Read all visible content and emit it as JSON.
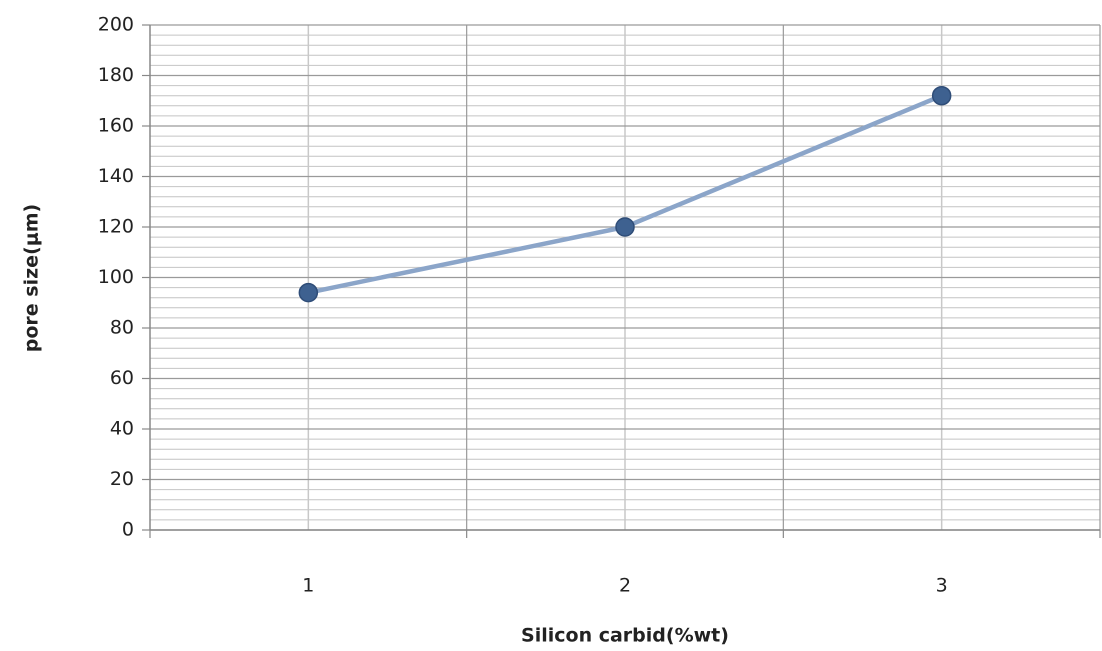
{
  "chart_data": {
    "type": "line",
    "xlabel": "Silicon carbid(%wt)",
    "ylabel": "pore size(μm)",
    "categories": [
      "1",
      "2",
      "3"
    ],
    "values": [
      94,
      120,
      172
    ],
    "color": "#8ba5c9",
    "marker_color": "#3e6190",
    "ylim": [
      0,
      200
    ],
    "yticks": [
      0,
      20,
      40,
      60,
      80,
      100,
      120,
      140,
      160,
      180,
      200
    ],
    "grid": true,
    "minor_grid": true
  }
}
